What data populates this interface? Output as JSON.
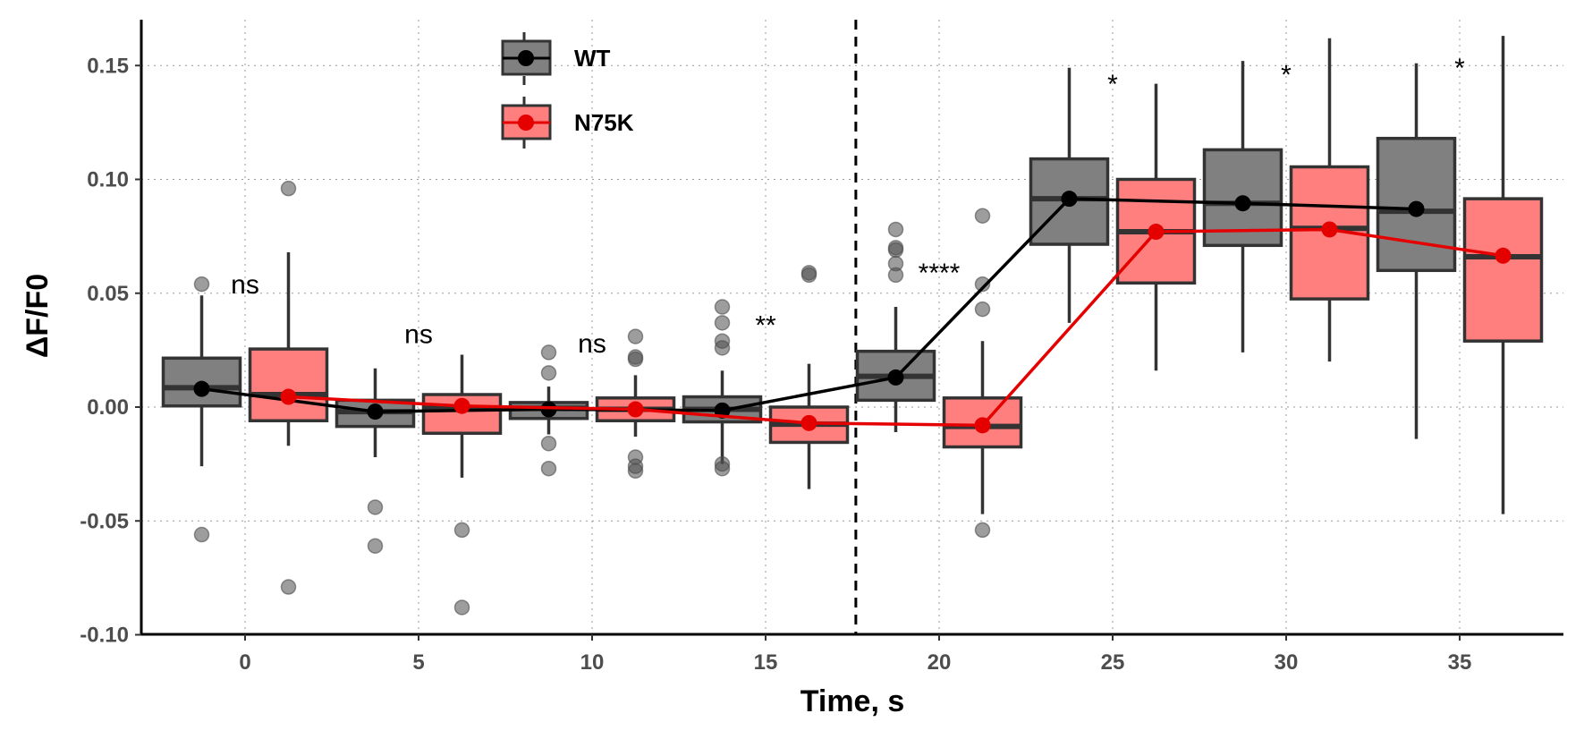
{
  "chart_data": {
    "type": "box",
    "title": "",
    "xlabel": "Time, s",
    "ylabel": "ΔF/F0",
    "xlim": [
      -3,
      38
    ],
    "ylim": [
      -0.1,
      0.17
    ],
    "x_ticks": [
      {
        "value": 0,
        "label": "0"
      },
      {
        "value": 5,
        "label": "5"
      },
      {
        "value": 10,
        "label": "10"
      },
      {
        "value": 15,
        "label": "15"
      },
      {
        "value": 20,
        "label": "20"
      },
      {
        "value": 25,
        "label": "25"
      },
      {
        "value": 30,
        "label": "30"
      },
      {
        "value": 35,
        "label": "35"
      }
    ],
    "y_ticks": [
      {
        "value": -0.1,
        "label": "-0.10"
      },
      {
        "value": -0.05,
        "label": "-0.05"
      },
      {
        "value": 0.0,
        "label": "0.00"
      },
      {
        "value": 0.05,
        "label": "0.05"
      },
      {
        "value": 0.1,
        "label": "0.10"
      },
      {
        "value": 0.15,
        "label": "0.15"
      }
    ],
    "grid": "dotted",
    "legend_position": "top-left",
    "stimulus_line_x": 17.6,
    "series": [
      {
        "name": "WT",
        "fill": "#808080",
        "line_color": "#000000",
        "boxes": [
          {
            "x": -1.25,
            "q1": 0.0005,
            "median": 0.0085,
            "q3": 0.0215,
            "whisker_low": -0.026,
            "whisker_high": 0.049,
            "mean": 0.008,
            "outliers": [
              0.054,
              -0.056
            ]
          },
          {
            "x": 3.75,
            "q1": -0.0085,
            "median": -0.002,
            "q3": 0.003,
            "whisker_low": -0.022,
            "whisker_high": 0.017,
            "mean": -0.002,
            "outliers": [
              -0.044,
              -0.061
            ]
          },
          {
            "x": 8.75,
            "q1": -0.005,
            "median": -0.0005,
            "q3": 0.002,
            "whisker_low": -0.012,
            "whisker_high": 0.009,
            "mean": -0.001,
            "outliers": [
              0.024,
              0.015,
              -0.016,
              -0.027
            ]
          },
          {
            "x": 13.75,
            "q1": -0.0065,
            "median": -0.001,
            "q3": 0.0045,
            "whisker_low": -0.025,
            "whisker_high": 0.016,
            "mean": -0.0015,
            "outliers": [
              0.044,
              0.037,
              0.029,
              0.026,
              -0.025,
              -0.027
            ]
          },
          {
            "x": 18.75,
            "q1": 0.003,
            "median": 0.0135,
            "q3": 0.0245,
            "whisker_low": -0.011,
            "whisker_high": 0.044,
            "mean": 0.013,
            "outliers": [
              0.078,
              0.07,
              0.069,
              0.063,
              0.058
            ]
          },
          {
            "x": 23.75,
            "q1": 0.0715,
            "median": 0.0915,
            "q3": 0.109,
            "whisker_low": 0.037,
            "whisker_high": 0.149,
            "mean": 0.0915,
            "outliers": []
          },
          {
            "x": 28.75,
            "q1": 0.071,
            "median": 0.0895,
            "q3": 0.113,
            "whisker_low": 0.024,
            "whisker_high": 0.152,
            "mean": 0.0895,
            "outliers": []
          },
          {
            "x": 33.75,
            "q1": 0.06,
            "median": 0.086,
            "q3": 0.118,
            "whisker_low": -0.014,
            "whisker_high": 0.151,
            "mean": 0.087,
            "outliers": []
          }
        ]
      },
      {
        "name": "N75K",
        "fill": "#ff7f7f",
        "line_color": "#e50000",
        "boxes": [
          {
            "x": 1.25,
            "q1": -0.006,
            "median": 0.0055,
            "q3": 0.0255,
            "whisker_low": -0.017,
            "whisker_high": 0.068,
            "mean": 0.0045,
            "outliers": [
              0.096,
              -0.079
            ]
          },
          {
            "x": 6.25,
            "q1": -0.0115,
            "median": -0.0005,
            "q3": 0.0055,
            "whisker_low": -0.031,
            "whisker_high": 0.023,
            "mean": 0.0005,
            "outliers": [
              -0.054,
              -0.088
            ]
          },
          {
            "x": 11.25,
            "q1": -0.006,
            "median": -0.001,
            "q3": 0.004,
            "whisker_low": -0.013,
            "whisker_high": 0.014,
            "mean": -0.001,
            "outliers": [
              0.031,
              0.022,
              0.021,
              -0.022,
              -0.026,
              -0.028
            ]
          },
          {
            "x": 16.25,
            "q1": -0.0155,
            "median": -0.0075,
            "q3": 0.0,
            "whisker_low": -0.036,
            "whisker_high": 0.019,
            "mean": -0.007,
            "outliers": [
              0.059,
              0.058
            ]
          },
          {
            "x": 21.25,
            "q1": -0.0175,
            "median": -0.0085,
            "q3": 0.004,
            "whisker_low": -0.047,
            "whisker_high": 0.029,
            "mean": -0.008,
            "outliers": [
              0.084,
              0.054,
              0.043,
              -0.054
            ]
          },
          {
            "x": 26.25,
            "q1": 0.0545,
            "median": 0.077,
            "q3": 0.1,
            "whisker_low": 0.016,
            "whisker_high": 0.142,
            "mean": 0.077,
            "outliers": []
          },
          {
            "x": 31.25,
            "q1": 0.0475,
            "median": 0.0785,
            "q3": 0.1055,
            "whisker_low": 0.02,
            "whisker_high": 0.162,
            "mean": 0.078,
            "outliers": []
          },
          {
            "x": 36.25,
            "q1": 0.029,
            "median": 0.066,
            "q3": 0.0915,
            "whisker_low": -0.047,
            "whisker_high": 0.163,
            "mean": 0.0665,
            "outliers": []
          }
        ]
      }
    ],
    "annotations": [
      {
        "x": 0,
        "y": 0.05,
        "text": "ns"
      },
      {
        "x": 5,
        "y": 0.028,
        "text": "ns"
      },
      {
        "x": 10,
        "y": 0.024,
        "text": "ns"
      },
      {
        "x": 15,
        "y": 0.032,
        "text": "**"
      },
      {
        "x": 20,
        "y": 0.055,
        "text": "****"
      },
      {
        "x": 25,
        "y": 0.138,
        "text": "*"
      },
      {
        "x": 30,
        "y": 0.142,
        "text": "*"
      },
      {
        "x": 35,
        "y": 0.145,
        "text": "*"
      }
    ]
  }
}
